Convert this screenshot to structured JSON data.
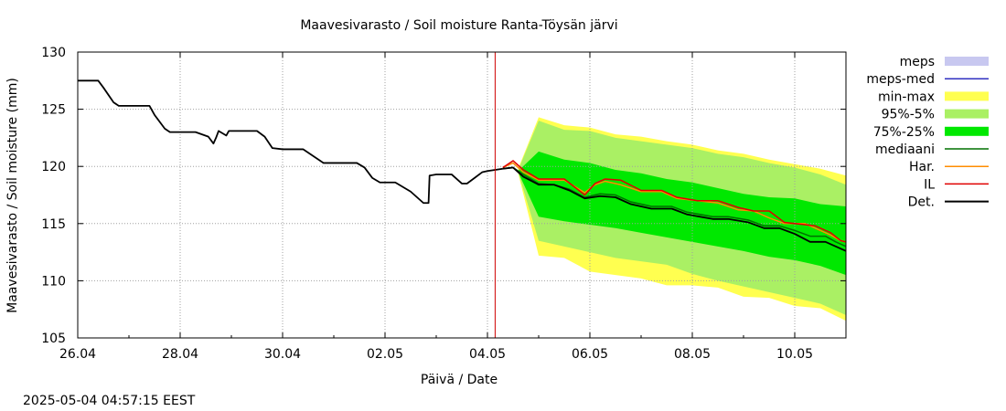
{
  "chart_data": {
    "type": "line",
    "title": "Maavesivarasto / Soil moisture   Ranta-Töysän järvi",
    "xlabel": "Päivä / Date",
    "ylabel": "Maavesivarasto / Soil moisture (mm)",
    "timestamp": "2025-05-04 04:57:15 EEST",
    "x_range": [
      0,
      15
    ],
    "ylim": [
      105,
      130
    ],
    "x_tick_labels": [
      "26.04",
      "28.04",
      "30.04",
      "02.05",
      "04.05",
      "06.05",
      "08.05",
      "10.05"
    ],
    "x_tick_values": [
      0,
      2,
      4,
      6,
      8,
      10,
      12,
      14
    ],
    "y_ticks": [
      105,
      110,
      115,
      120,
      125,
      130
    ],
    "grid": true,
    "legend_position": "right",
    "now_x": 8.15,
    "legend": [
      {
        "key": "meps",
        "label": "meps",
        "kind": "band",
        "color": "#c8c8f0"
      },
      {
        "key": "meps_med",
        "label": "meps-med",
        "kind": "line",
        "color": "#3030c0"
      },
      {
        "key": "minmax",
        "label": "min-max",
        "kind": "band",
        "color": "#ffff50"
      },
      {
        "key": "p95_5",
        "label": "95%-5%",
        "kind": "band",
        "color": "#aaf064"
      },
      {
        "key": "p75_25",
        "label": "75%-25%",
        "kind": "band",
        "color": "#00e800"
      },
      {
        "key": "mediaani",
        "label": "mediaani",
        "kind": "line",
        "color": "#007000"
      },
      {
        "key": "har",
        "label": "Har.",
        "kind": "line",
        "color": "#ff8c00"
      },
      {
        "key": "il",
        "label": "IL",
        "kind": "line",
        "color": "#e00000"
      },
      {
        "key": "det",
        "label": "Det.",
        "kind": "line",
        "color": "#000000"
      }
    ],
    "x_days": [
      0,
      0.5,
      0.9,
      1.4,
      1.9,
      2.3,
      2.5,
      2.65,
      2.85,
      3.0,
      3.4,
      3.65,
      3.8,
      4.2,
      4.8,
      5.2,
      5.5,
      6.1,
      6.45,
      6.7,
      6.75,
      7.3,
      7.45,
      7.7,
      8.0
    ],
    "series": [
      {
        "key": "det_history",
        "x": [
          0,
          0.4,
          0.5,
          0.7,
          0.8,
          1.4,
          1.5,
          1.7,
          1.8,
          2.3,
          2.55,
          2.65,
          2.7,
          2.75,
          2.9,
          2.95,
          3.5,
          3.65,
          3.8,
          4.0,
          4.4,
          4.8,
          5.45,
          5.6,
          5.75,
          5.9,
          6.2,
          6.5,
          6.75,
          6.85,
          6.87,
          7.0,
          7.3,
          7.5,
          7.6,
          7.75,
          7.9,
          8.0,
          8.3
        ],
        "values": [
          127.5,
          127.5,
          126.9,
          125.6,
          125.3,
          125.3,
          124.5,
          123.3,
          123.0,
          123.0,
          122.6,
          122.0,
          122.5,
          123.1,
          122.7,
          123.1,
          123.1,
          122.6,
          121.6,
          121.5,
          121.5,
          120.3,
          120.3,
          119.9,
          119.0,
          118.6,
          118.6,
          117.8,
          116.8,
          116.8,
          119.2,
          119.3,
          119.3,
          118.5,
          118.5,
          119.0,
          119.5,
          119.6,
          119.8
        ]
      },
      {
        "key": "minmax_upper",
        "x": [
          8.6,
          9.0,
          9.5,
          10.0,
          10.5,
          11.0,
          11.5,
          12.0,
          12.5,
          13.0,
          13.5,
          14.0,
          14.5,
          15.0
        ],
        "values": [
          119.8,
          124.3,
          123.6,
          123.4,
          122.8,
          122.6,
          122.2,
          121.9,
          121.4,
          121.1,
          120.6,
          120.2,
          119.8,
          119.2
        ]
      },
      {
        "key": "minmax_lower",
        "x": [
          8.6,
          9.0,
          9.5,
          10.0,
          10.5,
          11.0,
          11.5,
          12.0,
          12.5,
          13.0,
          13.5,
          14.0,
          14.5,
          15.0
        ],
        "values": [
          119.4,
          112.2,
          112.0,
          110.8,
          110.5,
          110.2,
          109.6,
          109.6,
          109.4,
          108.6,
          108.5,
          107.8,
          107.6,
          106.5
        ]
      },
      {
        "key": "p95_upper",
        "x": [
          8.6,
          9.0,
          9.5,
          10.0,
          10.5,
          11.0,
          11.5,
          12.0,
          12.5,
          13.0,
          13.5,
          14.0,
          14.5,
          15.0
        ],
        "values": [
          119.7,
          124.0,
          123.2,
          123.1,
          122.5,
          122.2,
          121.9,
          121.6,
          121.1,
          120.8,
          120.3,
          119.9,
          119.3,
          118.4
        ]
      },
      {
        "key": "p95_lower",
        "x": [
          8.6,
          9.0,
          9.5,
          10.0,
          10.5,
          11.0,
          11.5,
          12.0,
          12.5,
          13.0,
          13.5,
          14.0,
          14.5,
          15.0
        ],
        "values": [
          119.5,
          113.5,
          113.0,
          112.5,
          112.0,
          111.7,
          111.4,
          110.6,
          110.0,
          109.5,
          109.0,
          108.5,
          108.0,
          107.0
        ]
      },
      {
        "key": "p75_upper",
        "x": [
          8.6,
          9.0,
          9.5,
          10.0,
          10.5,
          11.0,
          11.5,
          12.0,
          12.5,
          13.0,
          13.5,
          14.0,
          14.5,
          15.0
        ],
        "values": [
          119.6,
          121.3,
          120.6,
          120.3,
          119.7,
          119.4,
          118.9,
          118.6,
          118.1,
          117.6,
          117.3,
          117.2,
          116.7,
          116.5
        ]
      },
      {
        "key": "p75_lower",
        "x": [
          8.6,
          9.0,
          9.5,
          10.0,
          10.5,
          11.0,
          11.5,
          12.0,
          12.5,
          13.0,
          13.5,
          14.0,
          14.5,
          15.0
        ],
        "values": [
          119.5,
          115.6,
          115.2,
          114.9,
          114.6,
          114.2,
          113.8,
          113.4,
          113.0,
          112.6,
          112.1,
          111.8,
          111.3,
          110.5
        ]
      },
      {
        "key": "mediaani",
        "x": [
          8.3,
          8.5,
          8.7,
          9.0,
          9.3,
          9.6,
          9.9,
          10.2,
          10.5,
          10.8,
          11.2,
          11.6,
          11.9,
          12.4,
          12.7,
          13.1,
          13.4,
          13.7,
          14.0,
          14.3,
          14.6,
          14.8,
          15.0
        ],
        "values": [
          119.8,
          119.9,
          119.3,
          118.5,
          118.4,
          118.0,
          117.3,
          117.6,
          117.5,
          116.9,
          116.5,
          116.5,
          116.0,
          115.6,
          115.6,
          115.3,
          114.8,
          114.8,
          114.4,
          113.9,
          113.9,
          113.4,
          113.0
        ]
      },
      {
        "key": "har",
        "x": [
          8.3,
          8.5,
          8.7,
          9.0,
          9.5,
          9.9,
          10.1,
          10.3,
          10.6,
          11.0,
          11.4,
          11.7,
          12.1,
          12.5,
          12.9,
          13.2,
          13.5,
          13.8,
          14.2,
          14.4,
          14.7,
          14.9,
          15.0
        ],
        "values": [
          119.9,
          120.3,
          119.5,
          118.8,
          118.8,
          117.7,
          118.4,
          118.7,
          118.4,
          117.8,
          117.8,
          117.2,
          117.0,
          116.8,
          116.2,
          116.1,
          115.5,
          115.0,
          115.0,
          114.6,
          114.0,
          113.5,
          113.4
        ]
      },
      {
        "key": "il",
        "x": [
          8.3,
          8.5,
          8.7,
          9.0,
          9.5,
          9.9,
          10.1,
          10.3,
          10.6,
          11.0,
          11.4,
          11.7,
          12.1,
          12.5,
          12.9,
          13.2,
          13.5,
          13.8,
          14.2,
          14.4,
          14.7,
          14.9,
          15.0
        ],
        "values": [
          119.9,
          120.5,
          119.7,
          118.9,
          118.9,
          117.5,
          118.5,
          118.9,
          118.8,
          117.9,
          117.9,
          117.3,
          117.0,
          117.0,
          116.4,
          116.1,
          116.1,
          115.1,
          114.9,
          114.8,
          114.2,
          113.5,
          113.4
        ]
      },
      {
        "key": "det_forecast",
        "x": [
          8.3,
          8.5,
          8.7,
          9.0,
          9.3,
          9.6,
          9.9,
          10.2,
          10.5,
          10.8,
          11.2,
          11.6,
          11.9,
          12.4,
          12.7,
          13.1,
          13.4,
          13.7,
          14.0,
          14.3,
          14.6,
          14.8,
          15.0
        ],
        "values": [
          119.8,
          119.9,
          119.1,
          118.4,
          118.4,
          117.9,
          117.2,
          117.4,
          117.3,
          116.7,
          116.3,
          116.3,
          115.8,
          115.4,
          115.4,
          115.1,
          114.6,
          114.6,
          114.1,
          113.4,
          113.4,
          113.0,
          112.6
        ]
      }
    ]
  }
}
